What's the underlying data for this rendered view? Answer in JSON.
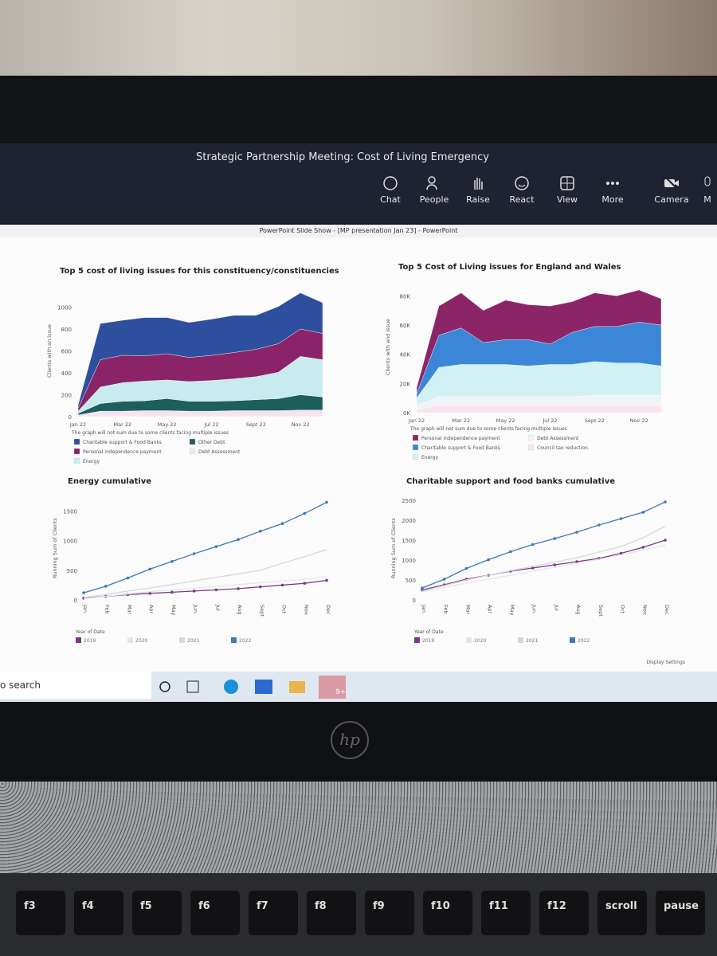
{
  "meeting": {
    "title": "Strategic Partnership Meeting: Cost of Living Emergency",
    "buttons": [
      "Chat",
      "People",
      "Raise",
      "React",
      "View",
      "More",
      "Camera",
      "M"
    ]
  },
  "window_title": "PowerPoint Slide Show - [MP presentation Jan 23] - PowerPoint",
  "chart_data": [
    {
      "type": "area",
      "stacked": true,
      "title": "Top 5 cost of living issues for this constituency/constituencies",
      "y_label": "Clients with an issue",
      "note": "The graph will not sum due to some clients facing multiple issues",
      "categories": [
        "Jan 22",
        null,
        "Mar 22",
        null,
        "May 22",
        null,
        "Jul 22",
        null,
        "Sept 22",
        null,
        "Nov 22",
        null
      ],
      "ylim": [
        0,
        1200
      ],
      "yticks": [
        0,
        200,
        400,
        600,
        800,
        1000
      ],
      "series": [
        {
          "name": "Debt Assessment",
          "color": "#f6e4ee",
          "values": [
            15,
            50,
            50,
            55,
            55,
            50,
            50,
            55,
            55,
            55,
            60,
            60
          ]
        },
        {
          "name": "Other Debt",
          "color": "#1c5f5e",
          "values": [
            15,
            70,
            90,
            90,
            110,
            90,
            90,
            90,
            100,
            110,
            140,
            120
          ]
        },
        {
          "name": "Energy",
          "color": "#c7ebee",
          "values": [
            20,
            150,
            170,
            180,
            170,
            180,
            190,
            200,
            210,
            240,
            350,
            340
          ]
        },
        {
          "name": "Personal independence payment",
          "color": "#8a2367",
          "values": [
            25,
            250,
            250,
            230,
            240,
            220,
            230,
            240,
            250,
            260,
            250,
            240
          ]
        },
        {
          "name": "Charitable support & Food Banks",
          "color": "#2d4f9e",
          "values": [
            30,
            330,
            320,
            350,
            330,
            320,
            330,
            340,
            310,
            340,
            330,
            280
          ]
        }
      ]
    },
    {
      "type": "area",
      "stacked": true,
      "title": "Top 5 Cost of Living issues for England and Wales",
      "y_label": "Clients with and issue",
      "note": "The graph will not sum due to some clients facing multiple issues",
      "categories": [
        "Jan 22",
        null,
        "Mar 22",
        null,
        "May 22",
        null,
        "Jul 22",
        null,
        "Sept 22",
        null,
        "Nov 22",
        null
      ],
      "ylim": [
        0,
        90000
      ],
      "yticks": [
        {
          "value": 0,
          "label": "0K"
        },
        {
          "value": 20000,
          "label": "20K"
        },
        {
          "value": 40000,
          "label": "40K"
        },
        {
          "value": 60000,
          "label": "60K"
        },
        {
          "value": 80000,
          "label": "80K"
        }
      ],
      "series": [
        {
          "name": "Council tax reduction",
          "color": "#f8e3ef",
          "values": [
            2000,
            5000,
            5000,
            5000,
            5000,
            5000,
            5000,
            5000,
            5000,
            5000,
            5000,
            5000
          ]
        },
        {
          "name": "Debt Assessment",
          "color": "#eef4f8",
          "values": [
            3000,
            6000,
            6000,
            6000,
            6000,
            6000,
            6000,
            6000,
            7000,
            7000,
            7000,
            7000
          ]
        },
        {
          "name": "Energy",
          "color": "#d2f1f4",
          "values": [
            5000,
            20000,
            22000,
            22000,
            22000,
            21000,
            22000,
            22000,
            23000,
            22000,
            22000,
            20000
          ]
        },
        {
          "name": "Charitable support & Food Banks",
          "color": "#3b86d6",
          "values": [
            3000,
            22000,
            25000,
            15000,
            17000,
            18000,
            14000,
            22000,
            24000,
            25000,
            28000,
            28000
          ]
        },
        {
          "name": "Personal independence payment",
          "color": "#8c2468",
          "values": [
            4000,
            20000,
            24000,
            22000,
            27000,
            24000,
            26000,
            21000,
            23000,
            21000,
            22000,
            18000
          ]
        }
      ]
    },
    {
      "type": "line",
      "title": "Energy cumulative",
      "y_label": "Running Sum of Clients",
      "legend_title": "Year of Date",
      "categories": [
        "Jan",
        "Feb",
        "Mar",
        "Apr",
        "May",
        "Jun",
        "Jul",
        "Aug",
        "Sept",
        "Oct",
        "Nov",
        "Dec"
      ],
      "ylim": [
        0,
        1750
      ],
      "yticks": [
        0,
        500,
        1000,
        1500
      ],
      "series": [
        {
          "name": "2019",
          "color": "#7b3a88",
          "markers": true,
          "values": [
            30,
            60,
            90,
            110,
            130,
            150,
            170,
            190,
            220,
            250,
            280,
            330
          ]
        },
        {
          "name": "2020",
          "color": "#e4e6ea",
          "markers": false,
          "values": [
            20,
            60,
            100,
            140,
            170,
            200,
            230,
            260,
            290,
            320,
            350,
            390
          ]
        },
        {
          "name": "2021",
          "color": "#d6d8dc",
          "markers": false,
          "values": [
            40,
            90,
            150,
            200,
            260,
            320,
            380,
            440,
            500,
            620,
            730,
            850
          ]
        },
        {
          "name": "2022",
          "color": "#3d78b8",
          "markers": true,
          "values": [
            120,
            230,
            370,
            520,
            650,
            780,
            900,
            1020,
            1160,
            1290,
            1460,
            1650
          ]
        }
      ]
    },
    {
      "type": "line",
      "title": "Charitable support and food banks cumulative",
      "y_label": "Running Sum of Clients",
      "legend_title": "Year of Date",
      "categories": [
        "Jan",
        "Feb",
        "Mar",
        "Apr",
        "May",
        "Jun",
        "Jul",
        "Aug",
        "Sept",
        "Oct",
        "Nov",
        "Dec"
      ],
      "ylim": [
        0,
        2600
      ],
      "yticks": [
        0,
        500,
        1000,
        1500,
        2000,
        2500
      ],
      "series": [
        {
          "name": "2019",
          "color": "#7b3a88",
          "markers": true,
          "values": [
            250,
            380,
            520,
            620,
            720,
            800,
            880,
            960,
            1040,
            1170,
            1320,
            1500
          ]
        },
        {
          "name": "2020",
          "color": "#e4e6ea",
          "markers": false,
          "values": [
            200,
            310,
            420,
            520,
            620,
            720,
            820,
            920,
            1020,
            1130,
            1250,
            1380
          ]
        },
        {
          "name": "2021",
          "color": "#d6d8dc",
          "markers": false,
          "values": [
            220,
            360,
            500,
            620,
            730,
            840,
            950,
            1060,
            1200,
            1340,
            1560,
            1850
          ]
        },
        {
          "name": "2022",
          "color": "#3d78b8",
          "markers": true,
          "values": [
            300,
            520,
            790,
            1010,
            1210,
            1390,
            1540,
            1700,
            1880,
            2040,
            2200,
            2460
          ]
        }
      ]
    }
  ],
  "slide_footer": "Display Settings",
  "taskbar": {
    "search": "o search",
    "badge": "9+"
  },
  "laptop_brand": "hp",
  "keyboard": [
    "f3",
    "f4",
    "f5",
    "f6",
    "f7",
    "f8",
    "f9",
    "f10",
    "f11",
    "f12",
    "scroll",
    "pause"
  ]
}
